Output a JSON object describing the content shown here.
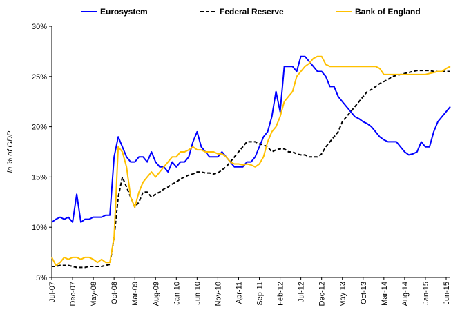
{
  "chart_data": {
    "type": "line",
    "y_label": "in % of GDP",
    "categories": [
      "Jul-07",
      null,
      null,
      null,
      null,
      "Dec-07",
      null,
      null,
      null,
      null,
      "May-08",
      null,
      null,
      null,
      null,
      "Oct-08",
      null,
      null,
      null,
      null,
      "Mar-09",
      null,
      null,
      null,
      null,
      "Aug-09",
      null,
      null,
      null,
      null,
      "Jan-10",
      null,
      null,
      null,
      null,
      "Jun-10",
      null,
      null,
      null,
      null,
      "Nov-10",
      null,
      null,
      null,
      null,
      "Apr-11",
      null,
      null,
      null,
      null,
      "Sep-11",
      null,
      null,
      null,
      null,
      "Feb-12",
      null,
      null,
      null,
      null,
      "Jul-12",
      null,
      null,
      null,
      null,
      "Dec-12",
      null,
      null,
      null,
      null,
      "May-13",
      null,
      null,
      null,
      null,
      "Oct-13",
      null,
      null,
      null,
      null,
      "Mar-14",
      null,
      null,
      null,
      null,
      "Aug-14",
      null,
      null,
      null,
      null,
      "Jan-15",
      null,
      null,
      null,
      null,
      "Jun-15",
      null
    ],
    "series": [
      {
        "name": "Eurosystem",
        "color": "#0000ff",
        "dash": "solid",
        "values": [
          10.5,
          10.8,
          11,
          10.8,
          11,
          10.5,
          13.3,
          10.5,
          10.8,
          10.8,
          11,
          11,
          11,
          11.2,
          11.2,
          17,
          19,
          18,
          17,
          16.5,
          16.5,
          17,
          17,
          16.5,
          17.5,
          16.5,
          16,
          16,
          15.5,
          16.5,
          16,
          16.5,
          16.5,
          17,
          18.5,
          19.5,
          18,
          17.5,
          17,
          17,
          17,
          17.5,
          17,
          16.5,
          16,
          16,
          16,
          16.5,
          16.5,
          17,
          18,
          19,
          19.5,
          21,
          23.5,
          21.5,
          26,
          26,
          26,
          25.5,
          27,
          27,
          26.5,
          26,
          25.5,
          25.5,
          25,
          24,
          24,
          23,
          22.5,
          22,
          21.5,
          21,
          20.8,
          20.5,
          20.3,
          20,
          19.5,
          19,
          18.7,
          18.5,
          18.5,
          18.5,
          18,
          17.5,
          17.2,
          17.3,
          17.5,
          18.5,
          18,
          18,
          19.5,
          20.5,
          21,
          21.5,
          22
        ]
      },
      {
        "name": "Federal Reserve",
        "color": "#000000",
        "dash": "dashed",
        "values": [
          6.1,
          6.1,
          6.2,
          6.2,
          6.2,
          6.1,
          6,
          6,
          6,
          6.1,
          6.1,
          6.1,
          6.1,
          6.2,
          6.3,
          9,
          13,
          15,
          14,
          13,
          12,
          12.5,
          13.5,
          13.5,
          13,
          13.3,
          13.5,
          13.8,
          14,
          14.3,
          14.5,
          14.8,
          15,
          15.2,
          15.3,
          15.5,
          15.5,
          15.4,
          15.4,
          15.3,
          15.4,
          15.7,
          16,
          16.5,
          17,
          17.5,
          18,
          18.5,
          18.5,
          18.5,
          18.3,
          18.2,
          18,
          17.5,
          17.7,
          17.8,
          17.8,
          17.5,
          17.5,
          17.3,
          17.2,
          17.2,
          17,
          17,
          17,
          17.3,
          18,
          18.5,
          19,
          19.5,
          20.5,
          21,
          21.5,
          22,
          22.5,
          23,
          23.5,
          23.7,
          24,
          24.3,
          24.5,
          24.7,
          25,
          25.1,
          25.2,
          25.3,
          25.4,
          25.5,
          25.6,
          25.6,
          25.6,
          25.6,
          25.5,
          25.5,
          25.5,
          25.5,
          25.5
        ]
      },
      {
        "name": "Bank of England",
        "color": "#ffc000",
        "dash": "solid",
        "values": [
          7,
          6.2,
          6.5,
          7,
          6.8,
          7,
          7,
          6.8,
          7,
          7,
          6.8,
          6.5,
          6.8,
          6.5,
          6.5,
          9,
          18,
          17.5,
          16,
          13,
          12,
          13.5,
          14.5,
          15,
          15.5,
          15,
          15.5,
          16,
          16.5,
          17,
          17,
          17.5,
          17.5,
          17.7,
          18,
          17.7,
          17.7,
          17.5,
          17.5,
          17.5,
          17.3,
          17.3,
          17,
          16.5,
          16.3,
          16.3,
          16.2,
          16.3,
          16.2,
          16,
          16.3,
          17,
          18.5,
          19.5,
          20,
          21,
          22.5,
          23,
          23.5,
          25,
          25.5,
          26,
          26.3,
          26.8,
          27,
          27,
          26.2,
          26,
          26,
          26,
          26,
          26,
          26,
          26,
          26,
          26,
          26,
          26,
          26,
          25.8,
          25.2,
          25.2,
          25.2,
          25.2,
          25.2,
          25.2,
          25.2,
          25.2,
          25.2,
          25.2,
          25.2,
          25.3,
          25.4,
          25.5,
          25.5,
          25.8,
          26
        ]
      }
    ],
    "ylim": [
      5,
      30
    ],
    "yticks": [
      {
        "value": 5,
        "label": "5%"
      },
      {
        "value": 10,
        "label": "10%"
      },
      {
        "value": 15,
        "label": "15%"
      },
      {
        "value": 20,
        "label": "20%"
      },
      {
        "value": 25,
        "label": "25%"
      },
      {
        "value": 30,
        "label": "30%"
      }
    ],
    "grid": false,
    "legend": "top"
  }
}
